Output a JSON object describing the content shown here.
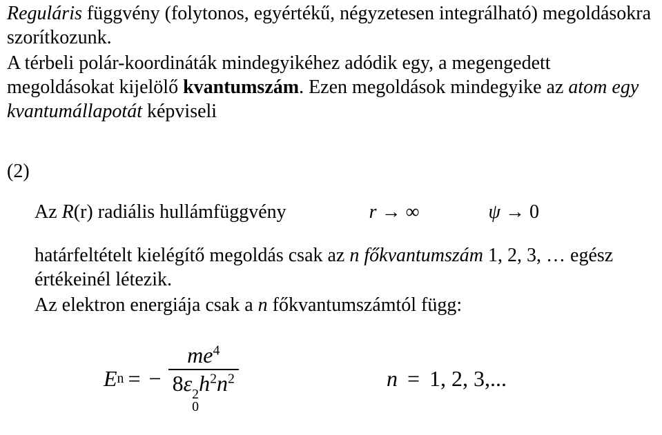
{
  "p1_a_italic": "Reguláris",
  "p1_a_rest": " függvény (folytonos, egyértékű, négyzetesen integrálható) megoldásokra szorítkozunk.",
  "p1_b_pre": "A térbeli polár-koordináták mindegyikéhez adódik egy, a megengedett megoldásokat kijelölő ",
  "p1_b_bold": "kvantumszám",
  "p1_b_mid": ". Ezen megoldások mindegyike az ",
  "p1_b_italic": "atom egy kvantumállapotát",
  "p1_b_end": " képviseli",
  "section_label": "(2)",
  "radlabel_pre": "Az ",
  "radlabel_R": "R",
  "radlabel_paren": "(r) radiális hullámfüggvény",
  "expr_r": "r",
  "arrow": "→",
  "infty": "∞",
  "psi": "ψ",
  "zero": "0",
  "cond_pre": "határfeltételt kielégítő megoldás csak az ",
  "cond_n_italic": "n főkvantumszám",
  "cond_post": " 1, 2, 3, … egész értékeinél létezik.",
  "energy_pre": "Az elektron energiája csak a ",
  "energy_n": "n",
  "energy_post": " főkvantumszámtól függ:",
  "E": "E",
  "n_sub": "n",
  "equals": "=",
  "minus": "−",
  "num_m": "me",
  "num_exp": "4",
  "den_8": "8",
  "den_eps": "ε",
  "den_eps_sup": "2",
  "den_eps_sub": "0",
  "den_h": "h",
  "den_h_exp": "2",
  "den_n": "n",
  "den_n_exp": "2",
  "rhs_n": "n",
  "rhs_eq": "=",
  "rhs_vals": "1, 2, 3,..."
}
